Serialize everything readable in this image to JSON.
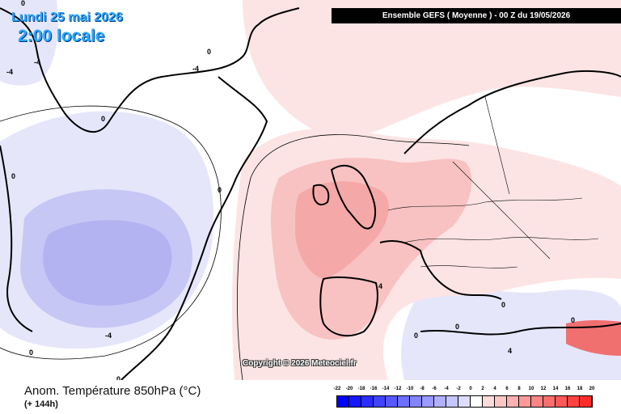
{
  "header": {
    "date_line": "Lundi 25 mai 2026",
    "time_line": "2:00 locale",
    "run_info": "Ensemble GEFS  ( Moyenne )  - 00 Z du 19/05/2026"
  },
  "map": {
    "copyright": "Copyright © 2026 Meteociel.fr",
    "contour_labels": [
      "0",
      "-4",
      "0",
      "-4",
      "0",
      "0",
      "0",
      "0",
      "4",
      "0",
      "-4",
      "0",
      "0",
      "0",
      "4",
      "0",
      "-4"
    ],
    "colors": {
      "ocean_background": "#ffffff",
      "light_positive": "#fde4e4",
      "medium_positive": "#f8c2c2",
      "strong_positive": "#f4a8a8",
      "light_negative": "#e4e4fc",
      "medium_negative": "#c8c8f6",
      "strong_negative": "#aaaaf0",
      "coastline": "#000000"
    }
  },
  "legend": {
    "title": "Anom. Température 850hPa (°C)",
    "subtitle": "(+ 144h)",
    "scale_labels": [
      "-22",
      "-20",
      "-18",
      "-16",
      "-14",
      "-12",
      "-10",
      "-8",
      "-6",
      "-4",
      "-2",
      "0",
      "2",
      "4",
      "6",
      "8",
      "10",
      "12",
      "14",
      "16",
      "18",
      "20"
    ],
    "scale_colors": [
      "#0000ff",
      "#1616ff",
      "#2c2cff",
      "#4242ff",
      "#5858ff",
      "#6e6eff",
      "#8484ff",
      "#9a9aff",
      "#b0b0ff",
      "#c6c6ff",
      "#dcdcff",
      "#ffffff",
      "#ffdcdc",
      "#ffc6c6",
      "#ffb0b0",
      "#ff9a9a",
      "#ff8484",
      "#ff6e6e",
      "#ff5858",
      "#ff4242",
      "#ff2c2c"
    ]
  }
}
